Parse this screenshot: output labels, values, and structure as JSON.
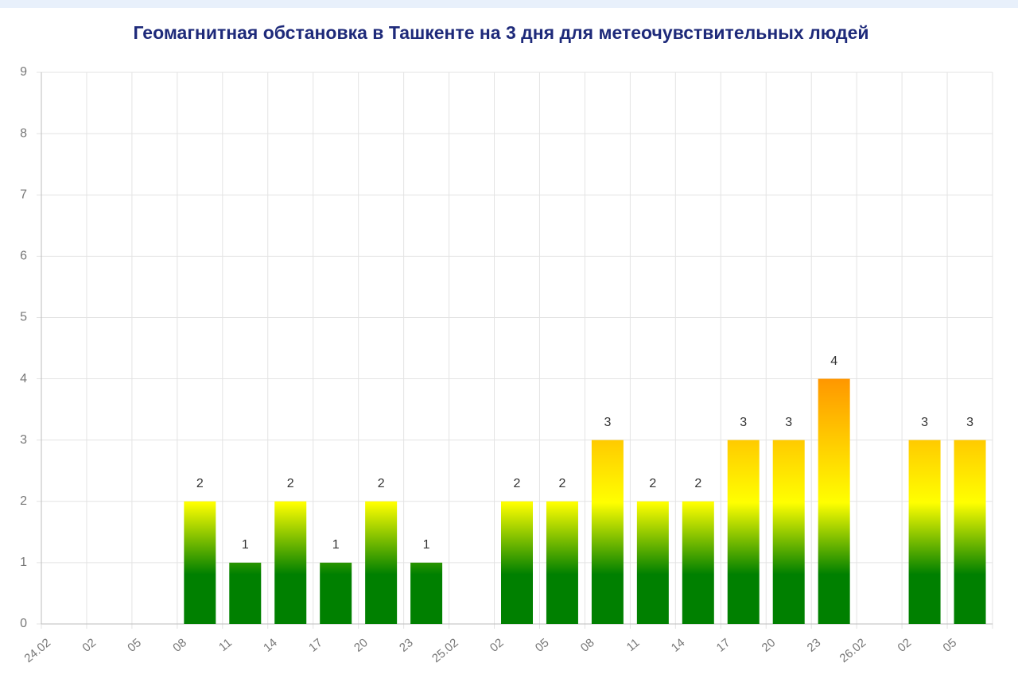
{
  "chart_data": {
    "type": "bar",
    "title": "Геомагнитная обстановка в Ташкенте на 3 дня для метеочувствительных людей",
    "categories": [
      "24.02",
      "02",
      "05",
      "08",
      "11",
      "14",
      "17",
      "20",
      "23",
      "25.02",
      "02",
      "05",
      "08",
      "11",
      "14",
      "17",
      "20",
      "23",
      "26.02",
      "02",
      "05"
    ],
    "values": [
      0,
      0,
      0,
      2,
      1,
      2,
      1,
      2,
      1,
      0,
      2,
      2,
      3,
      2,
      2,
      3,
      3,
      4,
      0,
      3,
      3
    ],
    "ylim": [
      0,
      9
    ],
    "yticks": [
      0,
      1,
      2,
      3,
      4,
      5,
      6,
      7,
      8,
      9
    ],
    "grid": true
  }
}
